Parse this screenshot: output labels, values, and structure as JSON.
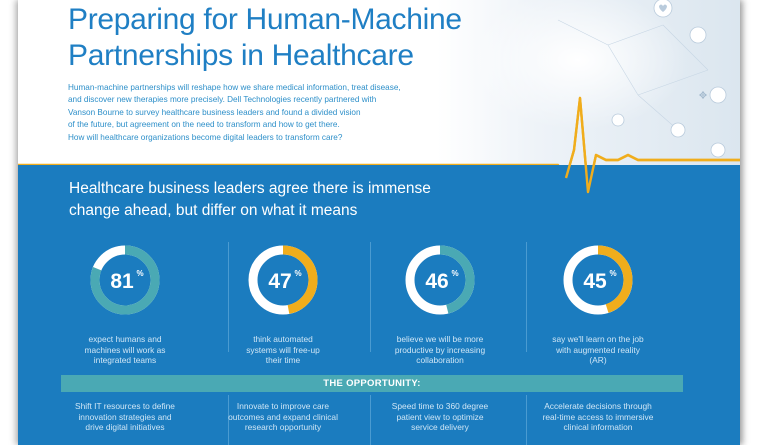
{
  "header": {
    "title_lines": [
      "Preparing for Human-Machine",
      "Partnerships in Healthcare"
    ],
    "intro_lines": [
      "Human-machine partnerships will reshape how we share medical information, treat disease,",
      "and discover new therapies more precisely. Dell Technologies recently partnered with",
      "Vanson Bourne to survey healthcare business leaders and found a divided vision",
      "of the future, but agreement on the need to transform and how to get there.",
      "How will healthcare organizations become digital leaders to transform care?"
    ]
  },
  "section": {
    "headline_lines": [
      "Healthcare business leaders agree there is immense",
      "change ahead, but differ on what it means"
    ]
  },
  "stats": [
    {
      "value": "81",
      "unit": "%",
      "fraction": 0.81,
      "ring_color": "#4aa9b4",
      "desc_lines": [
        "expect humans and",
        "machines will work as",
        "integrated teams"
      ]
    },
    {
      "value": "47",
      "unit": "%",
      "fraction": 0.47,
      "ring_color": "#f0ad1c",
      "desc_lines": [
        "think automated",
        "systems will free-up",
        "their time"
      ]
    },
    {
      "value": "46",
      "unit": "%",
      "fraction": 0.46,
      "ring_color": "#4aa9b4",
      "desc_lines": [
        "believe we will be more",
        "productive by increasing",
        "collaboration"
      ]
    },
    {
      "value": "45",
      "unit": "%",
      "fraction": 0.45,
      "ring_color": "#f0ad1c",
      "desc_lines": [
        "say we'll learn on the job",
        "with augmented reality",
        "(AR)"
      ]
    }
  ],
  "opportunity": {
    "label": "THE OPPORTUNITY:",
    "items": [
      {
        "lines": [
          "Shift IT resources to define",
          "innovation strategies and",
          "drive digital initiatives"
        ]
      },
      {
        "lines": [
          "Innovate to improve care",
          "outcomes and expand clinical",
          "research opportunity"
        ]
      },
      {
        "lines": [
          "Speed time to 360 degree",
          "patient view to optimize",
          "service delivery"
        ]
      },
      {
        "lines": [
          "Accelerate decisions through",
          "real-time access to immersive",
          "clinical information"
        ]
      }
    ]
  },
  "colors": {
    "title_blue": "#1f7fc4",
    "panel_blue": "#1b7cbf",
    "teal": "#4aa9b4",
    "gold": "#f0ad1c",
    "ecg_line": "#f0ad1c"
  }
}
